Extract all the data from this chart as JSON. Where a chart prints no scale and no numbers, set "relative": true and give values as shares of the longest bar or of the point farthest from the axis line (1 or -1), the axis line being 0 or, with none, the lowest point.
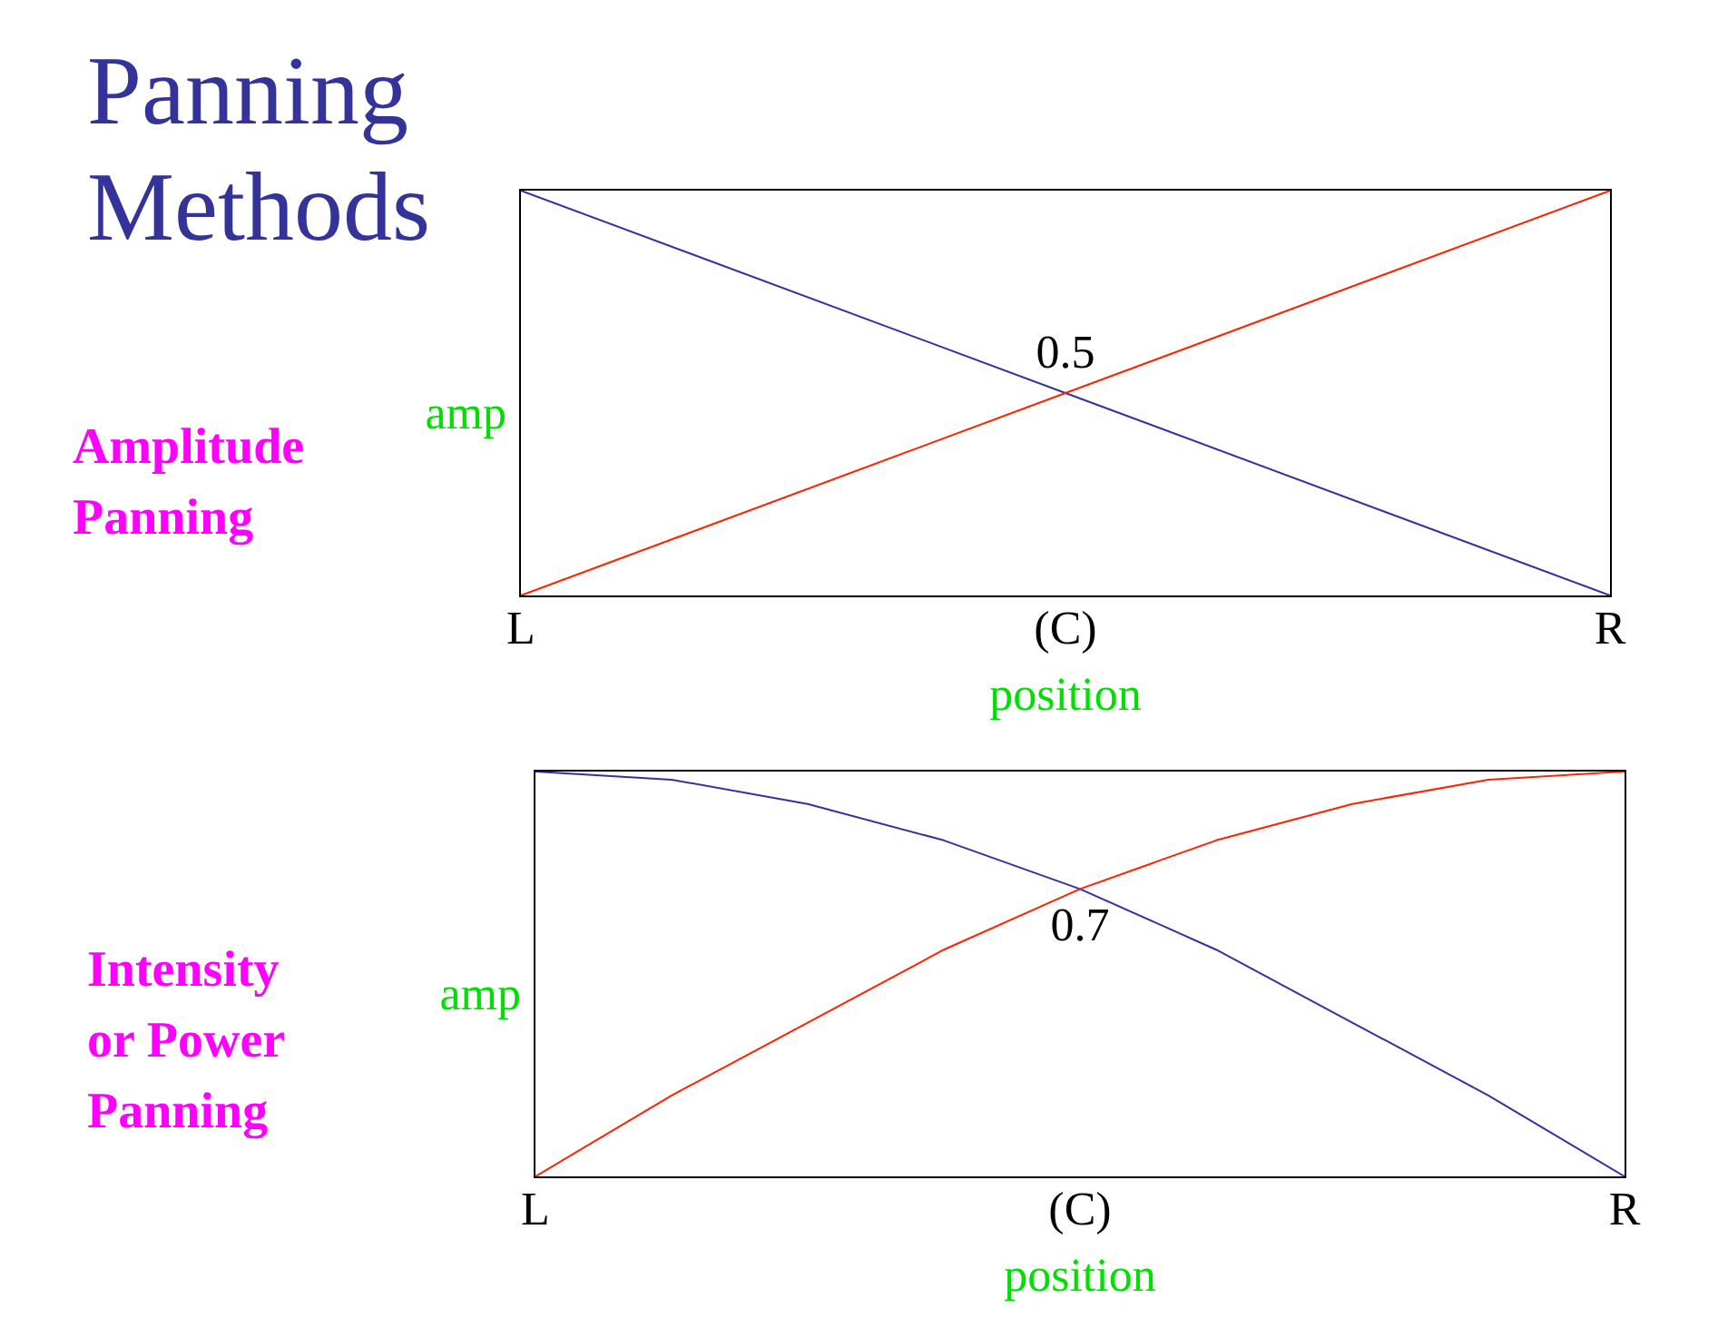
{
  "chart_data": [
    {
      "type": "line",
      "title": "Panning Methods",
      "subtitle": "Amplitude Panning",
      "xlabel": "position",
      "ylabel": "amp",
      "relative": true,
      "categories": [
        "L",
        "(C)",
        "R"
      ],
      "series": [
        {
          "color": "#3333a0",
          "values": [
            1,
            0.5,
            0
          ]
        },
        {
          "color": "#ff2200",
          "values": [
            0,
            0.5,
            1
          ]
        }
      ],
      "annotations": [
        {
          "text": "0.5",
          "x": "(C)",
          "y": 0.5
        }
      ],
      "marker": "none",
      "line_style": "solid",
      "grid": false,
      "legend": false
    },
    {
      "type": "line",
      "subtitle": "Intensity or Power Panning",
      "xlabel": "position",
      "ylabel": "amp",
      "relative": true,
      "categories": [
        "L",
        null,
        null,
        null,
        "(C)",
        null,
        null,
        null,
        "R"
      ],
      "series": [
        {
          "color": "#3333a0",
          "values": [
            1,
            0.98,
            0.92,
            0.83,
            0.71,
            0.56,
            0.38,
            0.2,
            0
          ]
        },
        {
          "color": "#ff2200",
          "values": [
            0,
            0.2,
            0.38,
            0.56,
            0.71,
            0.83,
            0.92,
            0.98,
            1
          ]
        }
      ],
      "annotations": [
        {
          "text": "0.7",
          "x": "(C)",
          "y": 0.71
        }
      ],
      "marker": "none",
      "line_style": "solid",
      "grid": false,
      "legend": false
    }
  ]
}
